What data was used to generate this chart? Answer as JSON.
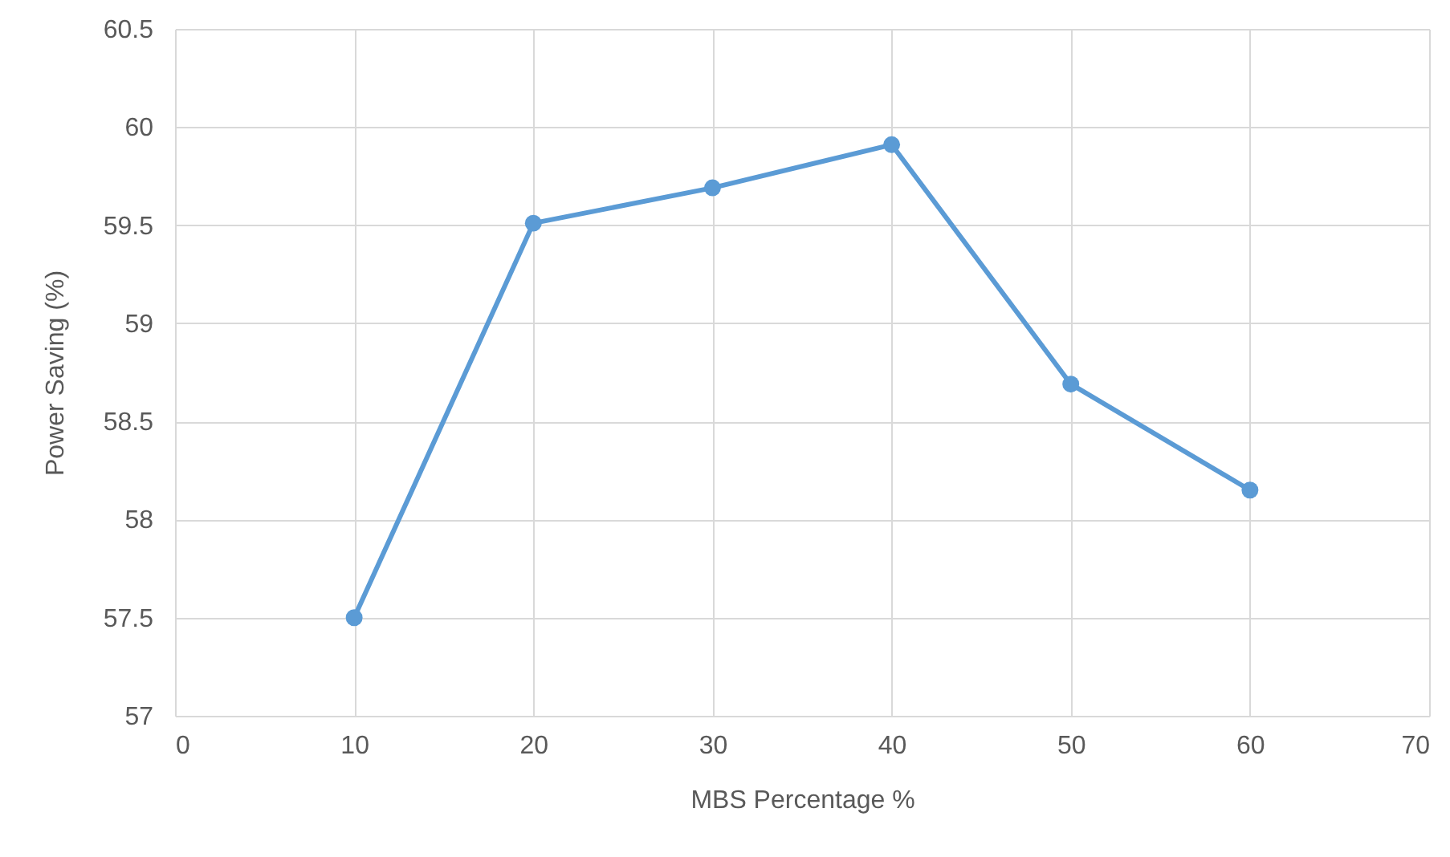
{
  "chart_data": {
    "type": "line",
    "xlabel": "MBS Percentage %",
    "ylabel": "Power Saving (%)",
    "x": [
      10,
      20,
      30,
      40,
      50,
      60
    ],
    "series": [
      {
        "color": "#5b9bd5",
        "values": [
          57.5,
          59.51,
          59.69,
          59.91,
          58.69,
          58.15
        ]
      }
    ],
    "xlim": [
      0,
      70
    ],
    "xticks": [
      0,
      10,
      20,
      30,
      40,
      50,
      60,
      70
    ],
    "ylim": [
      57,
      60.5
    ],
    "yticks": [
      57,
      57.5,
      58,
      58.5,
      59,
      59.5,
      60,
      60.5
    ],
    "grid": true,
    "marker": "circle",
    "line_style": "solid"
  }
}
